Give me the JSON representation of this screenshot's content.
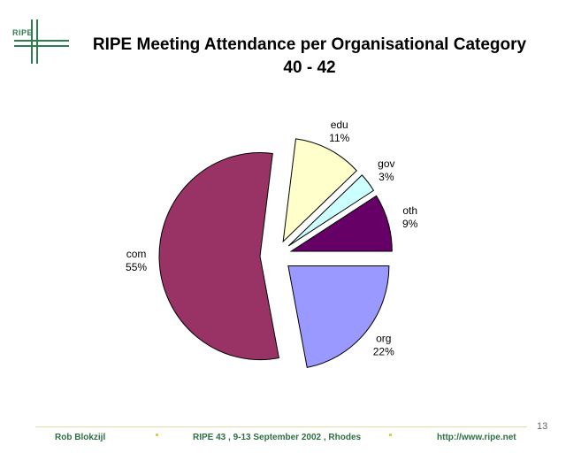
{
  "logo": {
    "text": "RIPE"
  },
  "header": {
    "title_line1": "RIPE Meeting Attendance per Organisational Category",
    "title_line2": "40 - 42"
  },
  "chart_data": {
    "type": "pie",
    "title": "RIPE Meeting Attendance per Organisational Category 40 - 42",
    "slices": [
      {
        "name": "edu",
        "value": 11,
        "label": "11%",
        "color": "#ffffcc",
        "exploded": true
      },
      {
        "name": "gov",
        "value": 3,
        "label": "3%",
        "color": "#ccffff",
        "exploded": true
      },
      {
        "name": "oth",
        "value": 9,
        "label": "9%",
        "color": "#660066",
        "exploded": true
      },
      {
        "name": "org",
        "value": 22,
        "label": "22%",
        "color": "#9999ff",
        "exploded": true
      },
      {
        "name": "com",
        "value": 55,
        "label": "55%",
        "color": "#993366",
        "exploded": true
      }
    ]
  },
  "footer": {
    "author": "Rob Blokzijl",
    "event": "RIPE 43 , 9-13 September 2002 , Rhodes",
    "url": "http://www.ripe.net",
    "page_number": "13"
  }
}
